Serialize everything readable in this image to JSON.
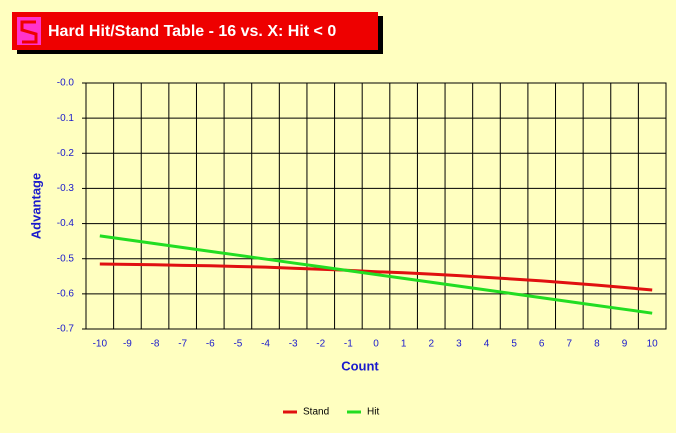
{
  "chart_data": {
    "type": "line",
    "title": "Hard Hit/Stand Table - 16 vs. X: Hit < 0",
    "x_label": "Count",
    "y_label": "Advantage",
    "categories": [
      "-10",
      "-9",
      "-8",
      "-7",
      "-6",
      "-5",
      "-4",
      "-3",
      "-2",
      "-1",
      "0",
      "1",
      "2",
      "3",
      "4",
      "5",
      "6",
      "7",
      "8",
      "9",
      "10"
    ],
    "series": [
      {
        "name": "Stand",
        "color": "#e01010",
        "values": [
          -0.515,
          -0.516,
          -0.517,
          -0.519,
          -0.52,
          -0.522,
          -0.524,
          -0.527,
          -0.53,
          -0.533,
          -0.537,
          -0.54,
          -0.544,
          -0.548,
          -0.553,
          -0.558,
          -0.563,
          -0.569,
          -0.575,
          -0.582,
          -0.589
        ]
      },
      {
        "name": "Hit",
        "color": "#22dd22",
        "values": [
          -0.435,
          -0.446,
          -0.457,
          -0.468,
          -0.479,
          -0.49,
          -0.501,
          -0.512,
          -0.523,
          -0.534,
          -0.545,
          -0.556,
          -0.567,
          -0.578,
          -0.589,
          -0.6,
          -0.611,
          -0.622,
          -0.633,
          -0.644,
          -0.655
        ]
      }
    ],
    "ylim": [
      -0.7,
      0
    ],
    "yticks": [
      {
        "value": 0,
        "label": "-0.0"
      },
      -0.1,
      -0.2,
      -0.3,
      -0.4,
      -0.5,
      -0.6,
      -0.7
    ],
    "grid": true,
    "legend": "bottom"
  }
}
